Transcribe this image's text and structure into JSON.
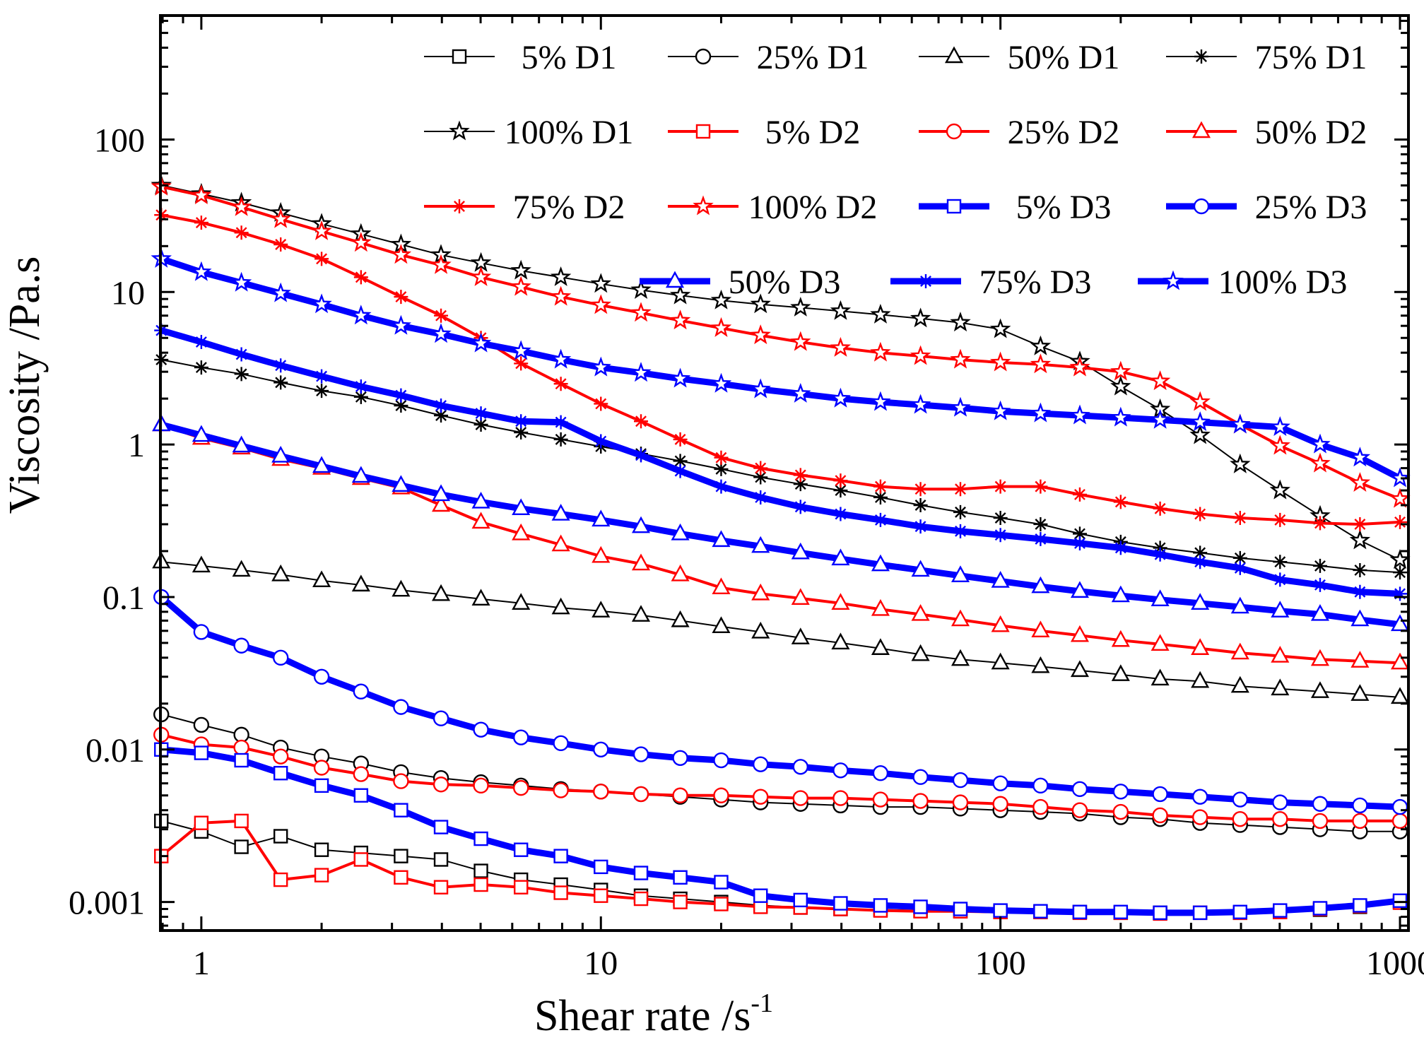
{
  "chart_data": {
    "type": "line",
    "xscale": "log",
    "yscale": "log",
    "xlabel": "Shear rate /s",
    "xlabel_sup": "-1",
    "ylabel": "Viscosity /Pa.s",
    "xlim": [
      0.79,
      1050
    ],
    "ylim": [
      0.00065,
      650
    ],
    "xticks": [
      {
        "v": 1,
        "label": "1"
      },
      {
        "v": 10,
        "label": "10"
      },
      {
        "v": 100,
        "label": "100"
      },
      {
        "v": 1000,
        "label": "1000"
      }
    ],
    "yticks": [
      {
        "v": 0.001,
        "label": "0.001"
      },
      {
        "v": 0.01,
        "label": "0.01"
      },
      {
        "v": 0.1,
        "label": "0.1"
      },
      {
        "v": 1,
        "label": "1"
      },
      {
        "v": 10,
        "label": "10"
      },
      {
        "v": 100,
        "label": "100"
      }
    ],
    "x": [
      0.794,
      1.0,
      1.26,
      1.58,
      2.0,
      2.51,
      3.16,
      3.98,
      5.01,
      6.31,
      7.94,
      10.0,
      12.6,
      15.8,
      20.0,
      25.1,
      31.6,
      39.8,
      50.1,
      63.1,
      79.4,
      100,
      126,
      158,
      200,
      251,
      316,
      398,
      501,
      631,
      794,
      1000
    ],
    "legend": {
      "columns": 4,
      "placement": "top"
    },
    "colors": {
      "D1": "#000000",
      "D2": "#ff0000",
      "D3": "#0000ff"
    },
    "series": [
      {
        "name": "5% D1",
        "group": "D1",
        "marker": "square",
        "width": 2,
        "values": [
          0.0034,
          0.0029,
          0.0023,
          0.0027,
          0.0022,
          0.0021,
          0.002,
          0.0019,
          0.0016,
          0.0014,
          0.0013,
          0.0012,
          0.0011,
          0.00105,
          0.001,
          0.00095,
          0.00092,
          0.0009,
          0.00089,
          0.00088,
          0.00087,
          0.00086,
          0.00086,
          0.00086,
          0.00085,
          0.00085,
          0.00085,
          0.00085,
          0.00086,
          0.00089,
          0.00093,
          0.001
        ]
      },
      {
        "name": "25% D1",
        "group": "D1",
        "marker": "circle",
        "width": 2,
        "values": [
          0.017,
          0.0145,
          0.0125,
          0.0103,
          0.009,
          0.0081,
          0.0071,
          0.0065,
          0.0061,
          0.0058,
          0.0055,
          0.0053,
          0.0051,
          0.0049,
          0.0047,
          0.0045,
          0.0044,
          0.0043,
          0.0042,
          0.0042,
          0.0041,
          0.004,
          0.0039,
          0.0038,
          0.0036,
          0.0035,
          0.0033,
          0.0032,
          0.0031,
          0.003,
          0.0029,
          0.0029
        ]
      },
      {
        "name": "50% D1",
        "group": "D1",
        "marker": "triangle",
        "width": 2,
        "values": [
          0.17,
          0.16,
          0.15,
          0.14,
          0.128,
          0.12,
          0.111,
          0.104,
          0.097,
          0.091,
          0.085,
          0.081,
          0.076,
          0.07,
          0.064,
          0.059,
          0.054,
          0.05,
          0.046,
          0.042,
          0.039,
          0.037,
          0.035,
          0.033,
          0.031,
          0.029,
          0.028,
          0.026,
          0.025,
          0.024,
          0.023,
          0.022
        ]
      },
      {
        "name": "75% D1",
        "group": "D1",
        "marker": "asterisk",
        "width": 2,
        "values": [
          3.6,
          3.2,
          2.9,
          2.55,
          2.25,
          2.05,
          1.8,
          1.55,
          1.35,
          1.2,
          1.08,
          0.97,
          0.87,
          0.78,
          0.69,
          0.61,
          0.55,
          0.5,
          0.45,
          0.4,
          0.36,
          0.33,
          0.3,
          0.26,
          0.23,
          0.21,
          0.195,
          0.18,
          0.17,
          0.16,
          0.15,
          0.145
        ]
      },
      {
        "name": "100% D1",
        "group": "D1",
        "marker": "star",
        "width": 2,
        "values": [
          50,
          44,
          38.5,
          33,
          28,
          24,
          20.5,
          17.5,
          15.5,
          13.8,
          12.5,
          11.3,
          10.3,
          9.5,
          8.8,
          8.3,
          7.9,
          7.5,
          7.1,
          6.7,
          6.3,
          5.7,
          4.4,
          3.5,
          2.4,
          1.7,
          1.15,
          0.74,
          0.5,
          0.34,
          0.235,
          0.175
        ]
      },
      {
        "name": "5% D2",
        "group": "D2",
        "marker": "square",
        "width": 4,
        "values": [
          0.002,
          0.0033,
          0.0034,
          0.0014,
          0.0015,
          0.0019,
          0.00145,
          0.00125,
          0.0013,
          0.00125,
          0.00115,
          0.0011,
          0.00105,
          0.001,
          0.00097,
          0.00093,
          0.00092,
          0.0009,
          0.00088,
          0.00087,
          0.00087,
          0.00086,
          0.00086,
          0.00085,
          0.00085,
          0.00084,
          0.00085,
          0.00085,
          0.00086,
          0.0009,
          0.00094,
          0.00099
        ]
      },
      {
        "name": "25% D2",
        "group": "D2",
        "marker": "circle",
        "width": 4,
        "values": [
          0.0125,
          0.0108,
          0.0103,
          0.009,
          0.0076,
          0.0069,
          0.0062,
          0.0059,
          0.0058,
          0.0056,
          0.0054,
          0.0053,
          0.0051,
          0.005,
          0.005,
          0.0049,
          0.0048,
          0.0048,
          0.0047,
          0.0046,
          0.0045,
          0.0044,
          0.0042,
          0.004,
          0.0039,
          0.0037,
          0.0036,
          0.0035,
          0.0035,
          0.0034,
          0.0034,
          0.0034
        ]
      },
      {
        "name": "50% D2",
        "group": "D2",
        "marker": "triangle",
        "width": 4,
        "values": [
          1.35,
          1.1,
          0.95,
          0.8,
          0.7,
          0.6,
          0.52,
          0.4,
          0.31,
          0.26,
          0.22,
          0.185,
          0.165,
          0.14,
          0.115,
          0.105,
          0.098,
          0.091,
          0.083,
          0.077,
          0.071,
          0.065,
          0.06,
          0.056,
          0.052,
          0.049,
          0.046,
          0.043,
          0.041,
          0.039,
          0.038,
          0.037
        ]
      },
      {
        "name": "75% D2",
        "group": "D2",
        "marker": "asterisk",
        "width": 4,
        "values": [
          32,
          28.5,
          24.5,
          20.5,
          16.5,
          12.5,
          9.3,
          7.0,
          5.0,
          3.4,
          2.5,
          1.85,
          1.42,
          1.08,
          0.82,
          0.7,
          0.63,
          0.58,
          0.53,
          0.51,
          0.51,
          0.53,
          0.53,
          0.47,
          0.42,
          0.38,
          0.35,
          0.33,
          0.32,
          0.305,
          0.3,
          0.31
        ]
      },
      {
        "name": "100% D2",
        "group": "D2",
        "marker": "star",
        "width": 4,
        "values": [
          49,
          43,
          36,
          30,
          25,
          21,
          17.5,
          15,
          12.5,
          10.8,
          9.3,
          8.2,
          7.3,
          6.5,
          5.8,
          5.2,
          4.7,
          4.3,
          4.0,
          3.8,
          3.6,
          3.45,
          3.35,
          3.2,
          3.0,
          2.6,
          1.9,
          1.35,
          0.98,
          0.75,
          0.56,
          0.44
        ]
      },
      {
        "name": "5%  D3",
        "group": "D3",
        "marker": "square",
        "width": 9,
        "values": [
          0.01,
          0.0095,
          0.0085,
          0.007,
          0.0058,
          0.005,
          0.004,
          0.0031,
          0.0026,
          0.0022,
          0.002,
          0.0017,
          0.00155,
          0.00145,
          0.00135,
          0.0011,
          0.00103,
          0.00098,
          0.00095,
          0.00093,
          0.0009,
          0.00088,
          0.00087,
          0.00086,
          0.00086,
          0.00085,
          0.00085,
          0.00086,
          0.00088,
          0.00091,
          0.00095,
          0.00102
        ]
      },
      {
        "name": "25% D3",
        "group": "D3",
        "marker": "circle",
        "width": 9,
        "values": [
          0.1,
          0.059,
          0.048,
          0.04,
          0.03,
          0.024,
          0.019,
          0.016,
          0.0135,
          0.012,
          0.011,
          0.01,
          0.0093,
          0.0088,
          0.0085,
          0.008,
          0.0077,
          0.0073,
          0.007,
          0.0066,
          0.0063,
          0.006,
          0.0058,
          0.0055,
          0.0053,
          0.0051,
          0.0049,
          0.0047,
          0.0045,
          0.0044,
          0.0043,
          0.0042
        ]
      },
      {
        "name": "50% D3",
        "group": "D3",
        "marker": "triangle",
        "width": 9,
        "values": [
          1.35,
          1.15,
          0.98,
          0.84,
          0.72,
          0.62,
          0.54,
          0.47,
          0.42,
          0.38,
          0.35,
          0.32,
          0.29,
          0.26,
          0.235,
          0.215,
          0.195,
          0.178,
          0.163,
          0.15,
          0.138,
          0.127,
          0.117,
          0.109,
          0.102,
          0.096,
          0.091,
          0.086,
          0.081,
          0.077,
          0.071,
          0.066
        ]
      },
      {
        "name": "75% D3",
        "group": "D3",
        "marker": "asterisk",
        "width": 9,
        "values": [
          5.6,
          4.7,
          3.9,
          3.3,
          2.8,
          2.4,
          2.1,
          1.8,
          1.6,
          1.42,
          1.4,
          1.05,
          0.85,
          0.67,
          0.53,
          0.45,
          0.39,
          0.35,
          0.32,
          0.29,
          0.27,
          0.255,
          0.24,
          0.225,
          0.21,
          0.19,
          0.17,
          0.155,
          0.13,
          0.12,
          0.108,
          0.105
        ]
      },
      {
        "name": "100% D3",
        "group": "D3",
        "marker": "star",
        "width": 9,
        "values": [
          16.5,
          13.5,
          11.5,
          9.8,
          8.3,
          7.0,
          6.0,
          5.3,
          4.6,
          4.1,
          3.6,
          3.2,
          2.95,
          2.7,
          2.5,
          2.3,
          2.15,
          2.0,
          1.9,
          1.82,
          1.74,
          1.65,
          1.6,
          1.55,
          1.5,
          1.45,
          1.4,
          1.35,
          1.3,
          1.0,
          0.82,
          0.6
        ]
      }
    ]
  }
}
